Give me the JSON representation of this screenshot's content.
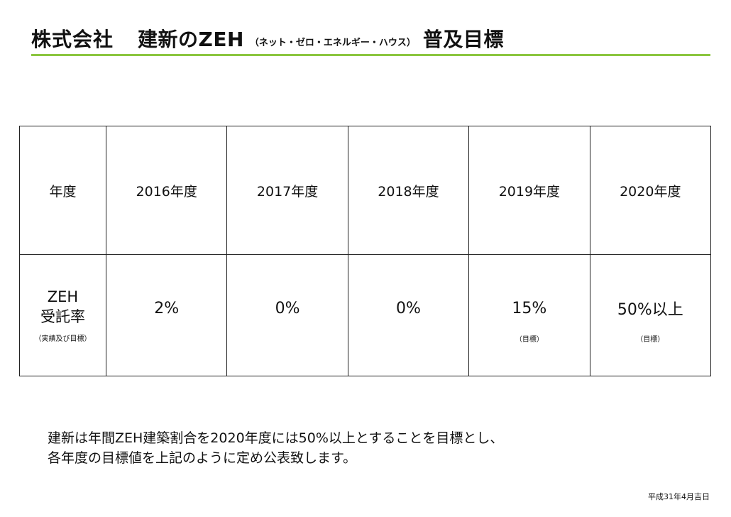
{
  "header": {
    "company": "株式会社",
    "title_main": "建新のZEH",
    "title_paren": "（ネット・ゼロ・エネルギー・ハウス）",
    "title_tail": "普及目標",
    "rule_color": "#8cc63f"
  },
  "table": {
    "corner_label": "年度",
    "years": [
      "2016年度",
      "2017年度",
      "2018年度",
      "2019年度",
      "2020年度"
    ],
    "row_label_line1": "ZEH",
    "row_label_line2": "受託率",
    "row_label_sub": "（実績及び目標）",
    "values": [
      {
        "value": "2%",
        "note": ""
      },
      {
        "value": "0%",
        "note": ""
      },
      {
        "value": "0%",
        "note": ""
      },
      {
        "value": "15%",
        "note": "（目標）"
      },
      {
        "value": "50%以上",
        "note": "（目標）"
      }
    ]
  },
  "description": {
    "line1": "建新は年間ZEH建築割合を2020年度には50%以上とすることを目標とし、",
    "line2": "各年度の目標値を上記のように定め公表致します。"
  },
  "date": "平成31年4月吉日"
}
